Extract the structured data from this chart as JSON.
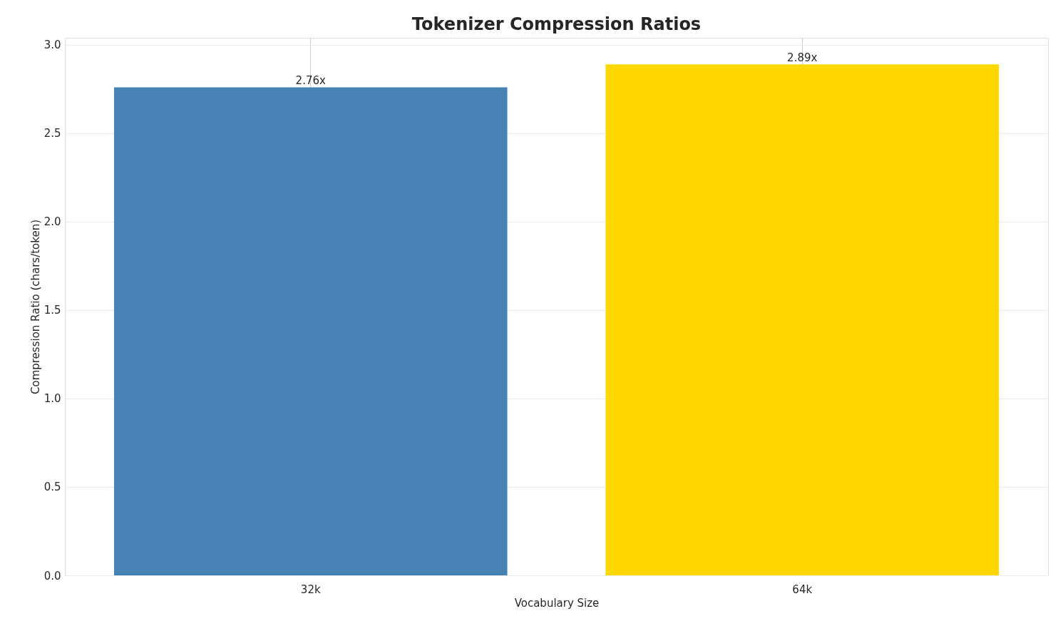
{
  "chart_data": {
    "type": "bar",
    "title": "Tokenizer Compression Ratios",
    "xlabel": "Vocabulary Size",
    "ylabel": "Compression Ratio (chars/token)",
    "categories": [
      "32k",
      "64k"
    ],
    "values": [
      2.76,
      2.89
    ],
    "colors": [
      "#4682b4",
      "#ffd700"
    ],
    "value_labels": [
      "2.76x",
      "2.89x"
    ],
    "ylim": [
      0,
      3.04
    ],
    "yticks": [
      {
        "value": 0,
        "label": "0.0"
      },
      0.5,
      {
        "value": 1,
        "label": "1.0"
      },
      1.5,
      {
        "value": 2,
        "label": "2.0"
      },
      2.5,
      {
        "value": 3,
        "label": "3.0"
      }
    ],
    "grid": true
  }
}
